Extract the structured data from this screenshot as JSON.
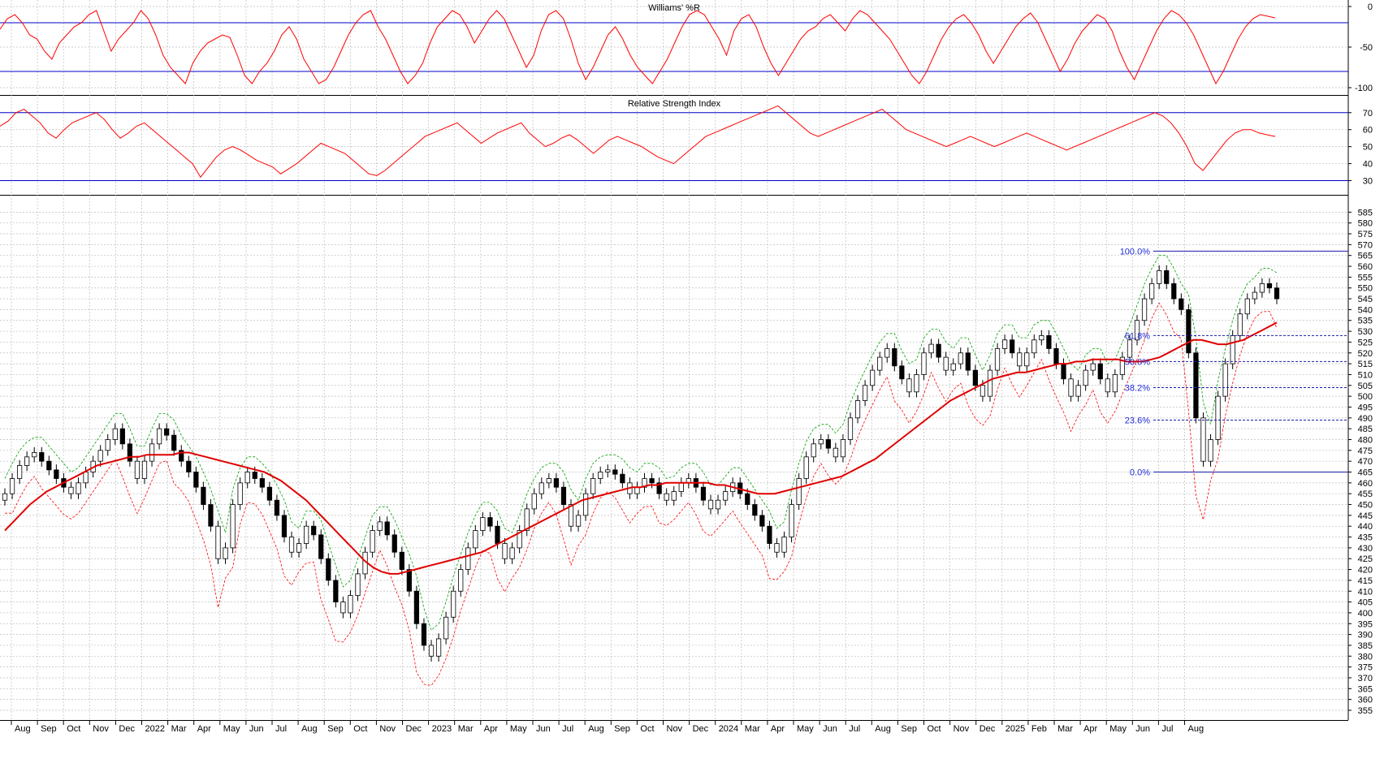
{
  "chart_data": [
    {
      "type": "line",
      "title": "Williams' %R",
      "ylim": [
        -100,
        0
      ],
      "yticks": [
        "0",
        "-50",
        "-100"
      ],
      "ytick_values": [
        0,
        -50,
        -100
      ],
      "reference_lines": [
        -20,
        -80
      ],
      "series": [
        {
          "values": [
            -28,
            -15,
            -10,
            -20,
            -35,
            -40,
            -55,
            -65,
            -45,
            -35,
            -25,
            -20,
            -10,
            -5,
            -30,
            -55,
            -40,
            -30,
            -20,
            -5,
            -15,
            -35,
            -60,
            -75,
            -85,
            -95,
            -70,
            -55,
            -45,
            -40,
            -35,
            -38,
            -60,
            -85,
            -95,
            -80,
            -70,
            -55,
            -35,
            -25,
            -40,
            -65,
            -80,
            -95,
            -90,
            -75,
            -55,
            -35,
            -20,
            -10,
            -5,
            -25,
            -40,
            -60,
            -80,
            -95,
            -85,
            -70,
            -45,
            -25,
            -15,
            -5,
            -10,
            -25,
            -45,
            -30,
            -15,
            -5,
            -15,
            -35,
            -55,
            -75,
            -60,
            -30,
            -10,
            -5,
            -15,
            -40,
            -70,
            -90,
            -75,
            -55,
            -35,
            -25,
            -40,
            -60,
            -75,
            -85,
            -95,
            -80,
            -65,
            -45,
            -25,
            -10,
            -5,
            -10,
            -25,
            -40,
            -60,
            -30,
            -15,
            -10,
            -25,
            -50,
            -70,
            -85,
            -70,
            -55,
            -40,
            -30,
            -25,
            -15,
            -10,
            -20,
            -30,
            -15,
            -5,
            -10,
            -20,
            -30,
            -40,
            -55,
            -70,
            -85,
            -95,
            -80,
            -60,
            -40,
            -25,
            -15,
            -10,
            -20,
            -35,
            -55,
            -70,
            -55,
            -40,
            -25,
            -15,
            -8,
            -20,
            -40,
            -60,
            -80,
            -65,
            -45,
            -30,
            -20,
            -10,
            -15,
            -30,
            -55,
            -75,
            -90,
            -70,
            -50,
            -30,
            -15,
            -5,
            -10,
            -20,
            -35,
            -55,
            -75,
            -95,
            -80,
            -60,
            -40,
            -25,
            -15,
            -10,
            -12,
            -14
          ]
        }
      ]
    },
    {
      "type": "line",
      "title": "Relative Strength Index",
      "ylim": [
        25,
        78
      ],
      "yticks": [
        "70",
        "60",
        "50",
        "40",
        "30"
      ],
      "ytick_values": [
        70,
        60,
        50,
        40,
        30
      ],
      "reference_lines": [
        70,
        30
      ],
      "series": [
        {
          "values": [
            62,
            65,
            70,
            72,
            68,
            64,
            58,
            55,
            60,
            64,
            66,
            68,
            70,
            66,
            60,
            55,
            58,
            62,
            64,
            60,
            56,
            52,
            48,
            44,
            40,
            32,
            38,
            44,
            48,
            50,
            48,
            45,
            42,
            40,
            38,
            34,
            37,
            40,
            44,
            48,
            52,
            50,
            48,
            46,
            42,
            38,
            34,
            33,
            36,
            40,
            44,
            48,
            52,
            56,
            58,
            60,
            62,
            64,
            60,
            56,
            52,
            55,
            58,
            60,
            62,
            64,
            58,
            54,
            50,
            52,
            55,
            57,
            54,
            50,
            46,
            50,
            54,
            56,
            54,
            52,
            50,
            47,
            44,
            42,
            40,
            44,
            48,
            52,
            56,
            58,
            60,
            62,
            64,
            66,
            68,
            70,
            72,
            74,
            70,
            66,
            62,
            58,
            56,
            58,
            60,
            62,
            64,
            66,
            68,
            70,
            72,
            68,
            64,
            60,
            58,
            56,
            54,
            52,
            50,
            52,
            54,
            56,
            54,
            52,
            50,
            52,
            54,
            56,
            58,
            56,
            54,
            52,
            50,
            48,
            50,
            52,
            54,
            56,
            58,
            60,
            62,
            64,
            66,
            68,
            70,
            68,
            64,
            58,
            50,
            40,
            36,
            42,
            48,
            54,
            58,
            60,
            60,
            58,
            57,
            56
          ]
        }
      ]
    },
    {
      "type": "candlestick",
      "ylim": [
        352,
        590
      ],
      "yticks": [
        "585",
        "580",
        "575",
        "570",
        "565",
        "560",
        "555",
        "550",
        "545",
        "540",
        "535",
        "530",
        "525",
        "520",
        "515",
        "510",
        "505",
        "500",
        "495",
        "490",
        "485",
        "480",
        "475",
        "470",
        "465",
        "460",
        "455",
        "450",
        "445",
        "440",
        "435",
        "430",
        "425",
        "420",
        "415",
        "410",
        "405",
        "400",
        "395",
        "390",
        "385",
        "380",
        "375",
        "370",
        "365",
        "360",
        "355"
      ],
      "ytick_values": [
        585,
        580,
        575,
        570,
        565,
        560,
        555,
        550,
        545,
        540,
        535,
        530,
        525,
        520,
        515,
        510,
        505,
        500,
        495,
        490,
        485,
        480,
        475,
        470,
        465,
        460,
        455,
        450,
        445,
        440,
        435,
        430,
        425,
        420,
        415,
        410,
        405,
        400,
        395,
        390,
        385,
        380,
        375,
        370,
        365,
        360,
        355
      ],
      "closes": [
        455,
        462,
        468,
        472,
        474,
        470,
        466,
        462,
        458,
        455,
        460,
        465,
        470,
        475,
        480,
        485,
        478,
        470,
        462,
        470,
        478,
        485,
        482,
        475,
        470,
        465,
        458,
        450,
        440,
        425,
        430,
        450,
        460,
        465,
        462,
        458,
        452,
        445,
        435,
        428,
        432,
        440,
        436,
        425,
        415,
        405,
        400,
        408,
        418,
        428,
        438,
        442,
        436,
        428,
        420,
        410,
        395,
        385,
        380,
        388,
        398,
        410,
        420,
        430,
        438,
        444,
        440,
        432,
        425,
        430,
        438,
        448,
        455,
        460,
        462,
        458,
        450,
        440,
        445,
        455,
        462,
        465,
        466,
        464,
        460,
        455,
        458,
        462,
        460,
        455,
        452,
        456,
        460,
        462,
        458,
        452,
        448,
        452,
        456,
        460,
        455,
        450,
        445,
        440,
        432,
        428,
        435,
        450,
        462,
        472,
        478,
        480,
        476,
        472,
        480,
        490,
        498,
        505,
        512,
        518,
        522,
        514,
        508,
        502,
        510,
        520,
        524,
        518,
        512,
        515,
        520,
        512,
        505,
        500,
        512,
        522,
        526,
        520,
        514,
        520,
        526,
        528,
        522,
        515,
        508,
        500,
        505,
        512,
        515,
        508,
        502,
        510,
        518,
        526,
        535,
        545,
        552,
        558,
        552,
        545,
        540,
        520,
        490,
        470,
        480,
        500,
        515,
        528,
        538,
        545,
        548,
        552,
        550,
        545
      ],
      "candle_up": [
        1,
        1,
        1,
        1,
        0,
        0,
        0,
        0,
        0,
        1,
        1,
        1,
        1,
        1,
        1,
        0,
        0,
        0,
        1,
        1,
        1,
        0,
        0,
        0,
        0,
        0,
        0,
        0,
        0,
        1,
        1,
        1,
        1,
        0,
        0,
        0,
        0,
        0,
        0,
        1,
        1,
        0,
        0,
        0,
        0,
        0,
        1,
        1,
        1,
        1,
        1,
        0,
        0,
        0,
        0,
        0,
        0,
        0,
        1,
        1,
        1,
        1,
        1,
        1,
        1,
        0,
        0,
        0,
        1,
        1,
        1,
        1,
        1,
        1,
        0,
        0,
        0,
        1,
        1,
        1,
        1,
        1,
        0,
        0,
        0,
        1,
        1,
        0,
        0,
        0,
        1,
        1,
        1,
        0,
        0,
        0,
        1,
        1,
        1,
        0,
        0,
        0,
        0,
        0,
        0,
        1,
        1,
        1,
        1,
        1,
        1,
        0,
        0,
        1,
        1,
        1,
        1,
        1,
        1,
        1,
        0,
        0,
        0,
        1,
        1,
        1,
        0,
        0,
        1,
        1,
        0,
        0,
        0,
        1,
        1,
        1,
        0,
        0,
        1,
        1,
        1,
        0,
        0,
        0,
        0,
        1,
        1,
        1,
        0,
        0,
        1,
        1,
        1,
        1,
        1,
        1,
        1,
        0,
        0,
        0,
        0,
        0,
        0,
        1,
        1,
        1,
        1,
        1,
        1,
        1,
        1,
        0,
        0
      ],
      "sma": [
        438,
        442,
        446,
        450,
        453,
        456,
        458,
        460,
        462,
        464,
        466,
        468,
        469,
        470,
        471,
        472,
        472,
        473,
        473,
        473,
        473,
        474,
        474,
        473,
        472,
        471,
        470,
        469,
        468,
        467,
        466,
        465,
        463,
        461,
        458,
        455,
        452,
        448,
        444,
        440,
        436,
        432,
        428,
        424,
        421,
        419,
        418,
        418,
        419,
        420,
        421,
        422,
        423,
        424,
        425,
        426,
        427,
        428,
        430,
        432,
        434,
        436,
        438,
        440,
        442,
        444,
        446,
        448,
        450,
        452,
        453,
        454,
        455,
        456,
        457,
        458,
        458,
        459,
        459,
        460,
        460,
        460,
        460,
        460,
        460,
        459,
        459,
        458,
        457,
        456,
        455,
        455,
        455,
        456,
        457,
        458,
        459,
        460,
        461,
        462,
        463,
        465,
        467,
        469,
        471,
        474,
        477,
        480,
        483,
        486,
        489,
        492,
        495,
        498,
        500,
        502,
        504,
        506,
        508,
        509,
        510,
        511,
        511,
        512,
        513,
        514,
        515,
        515,
        516,
        516,
        517,
        517,
        517,
        517,
        516,
        516,
        516,
        517,
        518,
        520,
        522,
        524,
        526,
        526,
        525,
        524,
        524,
        525,
        526,
        528,
        530,
        532,
        534
      ],
      "fibonacci": [
        {
          "label": "100.0%",
          "value": 567,
          "style": "solid"
        },
        {
          "label": "61.8%",
          "value": 528,
          "style": "dashed"
        },
        {
          "label": "50.0%",
          "value": 516,
          "style": "dashed"
        },
        {
          "label": "38.2%",
          "value": 504,
          "style": "dashed"
        },
        {
          "label": "23.6%",
          "value": 489,
          "style": "dashed"
        },
        {
          "label": "0.0%",
          "value": 465,
          "style": "solid"
        }
      ]
    }
  ],
  "xaxis": {
    "labels": [
      "Aug",
      "Sep",
      "Oct",
      "Nov",
      "Dec",
      "2022",
      "Mar",
      "Apr",
      "May",
      "Jun",
      "Jul",
      "Aug",
      "Sep",
      "Oct",
      "Nov",
      "Dec",
      "2023",
      "Mar",
      "Apr",
      "May",
      "Jun",
      "Jul",
      "Aug",
      "Sep",
      "Oct",
      "Nov",
      "Dec",
      "2024",
      "Mar",
      "Apr",
      "May",
      "Jun",
      "Jul",
      "Aug",
      "Sep",
      "Oct",
      "Nov",
      "Dec",
      "2025",
      "Feb",
      "Mar",
      "Apr",
      "May",
      "Jun",
      "Jul",
      "Aug"
    ]
  },
  "colors": {
    "indicator_line": "#ff0000",
    "reference_line": "#0000c8",
    "sma": "#e00000",
    "envelope_upper": "#00a000",
    "envelope_lower": "#ff0000",
    "fib_text": "#1f2bd6",
    "grid": "#bdbdbd"
  }
}
